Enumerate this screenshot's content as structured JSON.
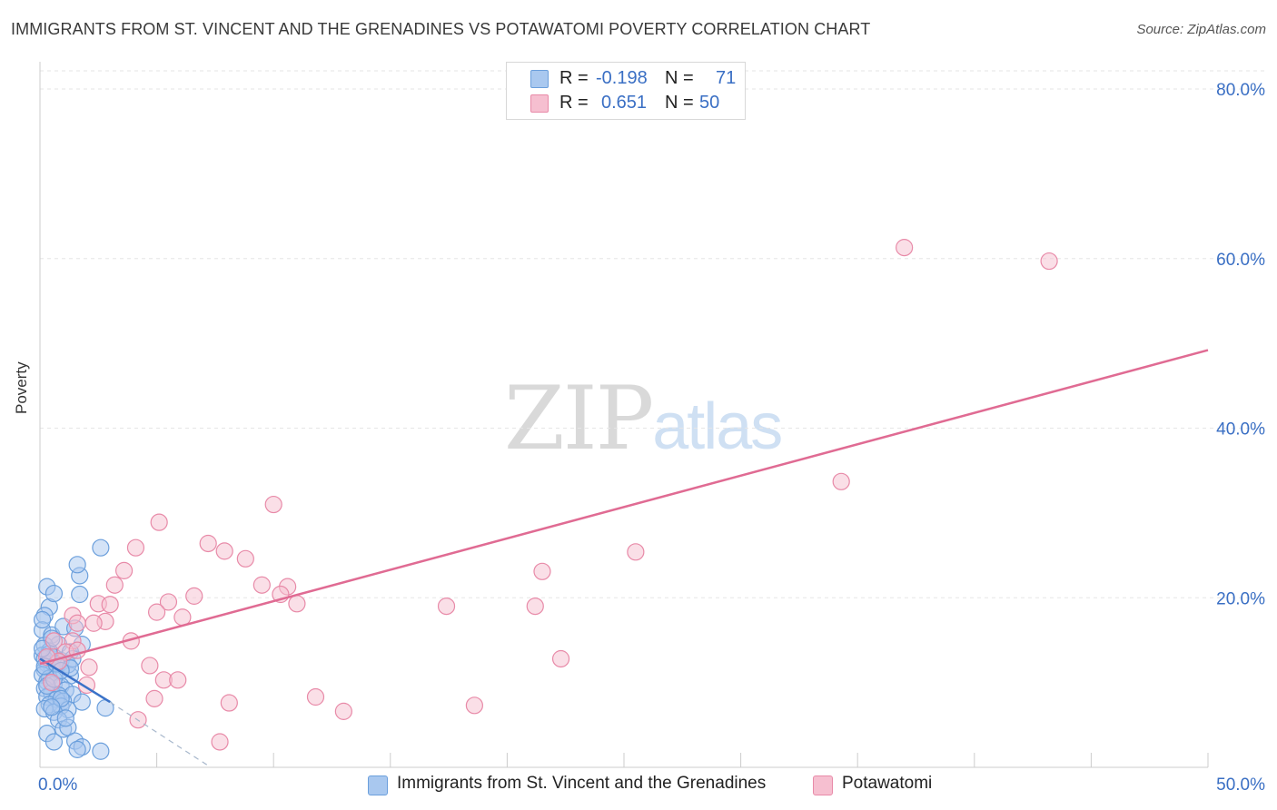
{
  "header": {
    "title": "IMMIGRANTS FROM ST. VINCENT AND THE GRENADINES VS POTAWATOMI POVERTY CORRELATION CHART",
    "source": "Source: ZipAtlas.com"
  },
  "watermark": {
    "zip": "ZIP",
    "atlas": "atlas"
  },
  "legend": {
    "rows": [
      {
        "r_label": "R =",
        "r_value": "-0.198",
        "n_label": "N =",
        "n_value": "71"
      },
      {
        "r_label": "R =",
        "r_value": "0.651",
        "n_label": "N =",
        "n_value": "50"
      }
    ]
  },
  "colors": {
    "blue_fill": "#a9c8ef",
    "blue_stroke": "#6b9fdc",
    "blue_line": "#3a72c8",
    "pink_fill": "#f6bfd0",
    "pink_stroke": "#e88aa8",
    "pink_line": "#e06b93",
    "grid": "#e6e6e6",
    "tick_label": "#3a6fc4"
  },
  "chart_data": {
    "type": "scatter",
    "title": "IMMIGRANTS FROM ST. VINCENT AND THE GRENADINES VS POTAWATOMI POVERTY CORRELATION CHART",
    "xlabel": "",
    "ylabel": "Poverty",
    "xlim": [
      0,
      50
    ],
    "ylim": [
      0,
      83
    ],
    "x_tick_labels": [
      "0.0%",
      "50.0%"
    ],
    "y_ticks": [
      20,
      40,
      60,
      80
    ],
    "y_tick_labels": [
      "20.0%",
      "40.0%",
      "60.0%",
      "80.0%"
    ],
    "grid": true,
    "legend_position": "top-center",
    "series": [
      {
        "name": "Immigrants from St. Vincent and the Grenadines",
        "color": "blue",
        "R": -0.198,
        "N": 71,
        "points": [
          [
            0.3,
            21.3
          ],
          [
            0.4,
            18.9
          ],
          [
            0.6,
            20.5
          ],
          [
            0.2,
            17.9
          ],
          [
            0.1,
            16.2
          ],
          [
            0.5,
            15.6
          ],
          [
            0.8,
            14.5
          ],
          [
            1.0,
            16.6
          ],
          [
            0.2,
            14.4
          ],
          [
            0.4,
            13.7
          ],
          [
            0.1,
            13.2
          ],
          [
            0.6,
            13.0
          ],
          [
            0.9,
            12.6
          ],
          [
            0.3,
            12.2
          ],
          [
            0.5,
            11.9
          ],
          [
            0.2,
            11.5
          ],
          [
            0.7,
            11.2
          ],
          [
            0.1,
            10.9
          ],
          [
            0.4,
            10.5
          ],
          [
            1.3,
            10.8
          ],
          [
            0.3,
            10.1
          ],
          [
            0.6,
            9.8
          ],
          [
            0.9,
            9.6
          ],
          [
            0.2,
            9.3
          ],
          [
            1.1,
            9.1
          ],
          [
            0.5,
            8.8
          ],
          [
            0.8,
            8.5
          ],
          [
            1.4,
            8.6
          ],
          [
            0.3,
            8.3
          ],
          [
            0.7,
            8.0
          ],
          [
            1.0,
            7.8
          ],
          [
            1.8,
            7.7
          ],
          [
            0.4,
            7.4
          ],
          [
            0.9,
            7.2
          ],
          [
            0.2,
            6.9
          ],
          [
            1.2,
            6.8
          ],
          [
            0.6,
            6.5
          ],
          [
            2.8,
            7.0
          ],
          [
            1.5,
            16.4
          ],
          [
            1.8,
            14.5
          ],
          [
            1.7,
            20.4
          ],
          [
            1.7,
            22.6
          ],
          [
            1.6,
            23.9
          ],
          [
            2.6,
            25.9
          ],
          [
            1.3,
            13.6
          ],
          [
            0.8,
            5.6
          ],
          [
            0.3,
            4.0
          ],
          [
            1.0,
            4.5
          ],
          [
            1.2,
            4.7
          ],
          [
            1.5,
            3.1
          ],
          [
            0.6,
            3.0
          ],
          [
            1.8,
            2.4
          ],
          [
            1.6,
            2.1
          ],
          [
            2.6,
            1.9
          ],
          [
            0.2,
            12.8
          ],
          [
            1.2,
            12.1
          ],
          [
            0.5,
            15.2
          ],
          [
            0.1,
            17.4
          ],
          [
            0.8,
            12.4
          ],
          [
            1.4,
            12.8
          ],
          [
            0.3,
            9.6
          ],
          [
            0.6,
            10.4
          ],
          [
            1.1,
            5.8
          ],
          [
            0.9,
            8.1
          ],
          [
            0.4,
            13.4
          ],
          [
            0.2,
            11.9
          ],
          [
            0.7,
            12.2
          ],
          [
            0.5,
            7.1
          ],
          [
            1.3,
            11.7
          ],
          [
            0.1,
            14.0
          ],
          [
            0.9,
            11.4
          ]
        ]
      },
      {
        "name": "Potawatomi",
        "color": "pink",
        "R": 0.651,
        "N": 50,
        "points": [
          [
            37.0,
            61.3
          ],
          [
            43.2,
            59.7
          ],
          [
            34.3,
            33.7
          ],
          [
            10.0,
            31.0
          ],
          [
            5.1,
            28.9
          ],
          [
            4.1,
            25.9
          ],
          [
            7.2,
            26.4
          ],
          [
            7.9,
            25.5
          ],
          [
            8.8,
            24.6
          ],
          [
            25.5,
            25.4
          ],
          [
            21.5,
            23.1
          ],
          [
            3.6,
            23.2
          ],
          [
            3.2,
            21.5
          ],
          [
            9.5,
            21.5
          ],
          [
            10.6,
            21.3
          ],
          [
            10.3,
            20.4
          ],
          [
            6.6,
            20.2
          ],
          [
            5.5,
            19.5
          ],
          [
            2.5,
            19.3
          ],
          [
            3.0,
            19.2
          ],
          [
            11.0,
            19.3
          ],
          [
            17.4,
            19.0
          ],
          [
            21.2,
            19.0
          ],
          [
            5.0,
            18.3
          ],
          [
            6.1,
            17.7
          ],
          [
            1.4,
            17.9
          ],
          [
            1.6,
            17.0
          ],
          [
            2.8,
            17.2
          ],
          [
            2.3,
            17.0
          ],
          [
            0.6,
            14.9
          ],
          [
            1.4,
            14.9
          ],
          [
            3.9,
            14.9
          ],
          [
            1.1,
            13.6
          ],
          [
            0.8,
            12.5
          ],
          [
            22.3,
            12.8
          ],
          [
            2.1,
            11.8
          ],
          [
            4.7,
            12.0
          ],
          [
            5.3,
            10.3
          ],
          [
            5.9,
            10.3
          ],
          [
            0.5,
            10.0
          ],
          [
            2.0,
            9.7
          ],
          [
            4.9,
            8.1
          ],
          [
            11.8,
            8.3
          ],
          [
            8.1,
            7.6
          ],
          [
            18.6,
            7.3
          ],
          [
            13.0,
            6.6
          ],
          [
            4.2,
            5.6
          ],
          [
            7.7,
            3.0
          ],
          [
            1.6,
            13.8
          ],
          [
            0.3,
            13.0
          ]
        ]
      }
    ],
    "trend_lines": [
      {
        "series": "Immigrants from St. Vincent and the Grenadines",
        "solid": [
          [
            0,
            12.8
          ],
          [
            3.0,
            7.7
          ]
        ],
        "dashed": [
          [
            3.0,
            7.7
          ],
          [
            7.2,
            0.2
          ]
        ]
      },
      {
        "series": "Potawatomi",
        "solid": [
          [
            0,
            12.2
          ],
          [
            50,
            49.2
          ]
        ]
      }
    ]
  },
  "bottom_legend": [
    {
      "label": "Immigrants from St. Vincent and the Grenadines"
    },
    {
      "label": "Potawatomi"
    }
  ]
}
